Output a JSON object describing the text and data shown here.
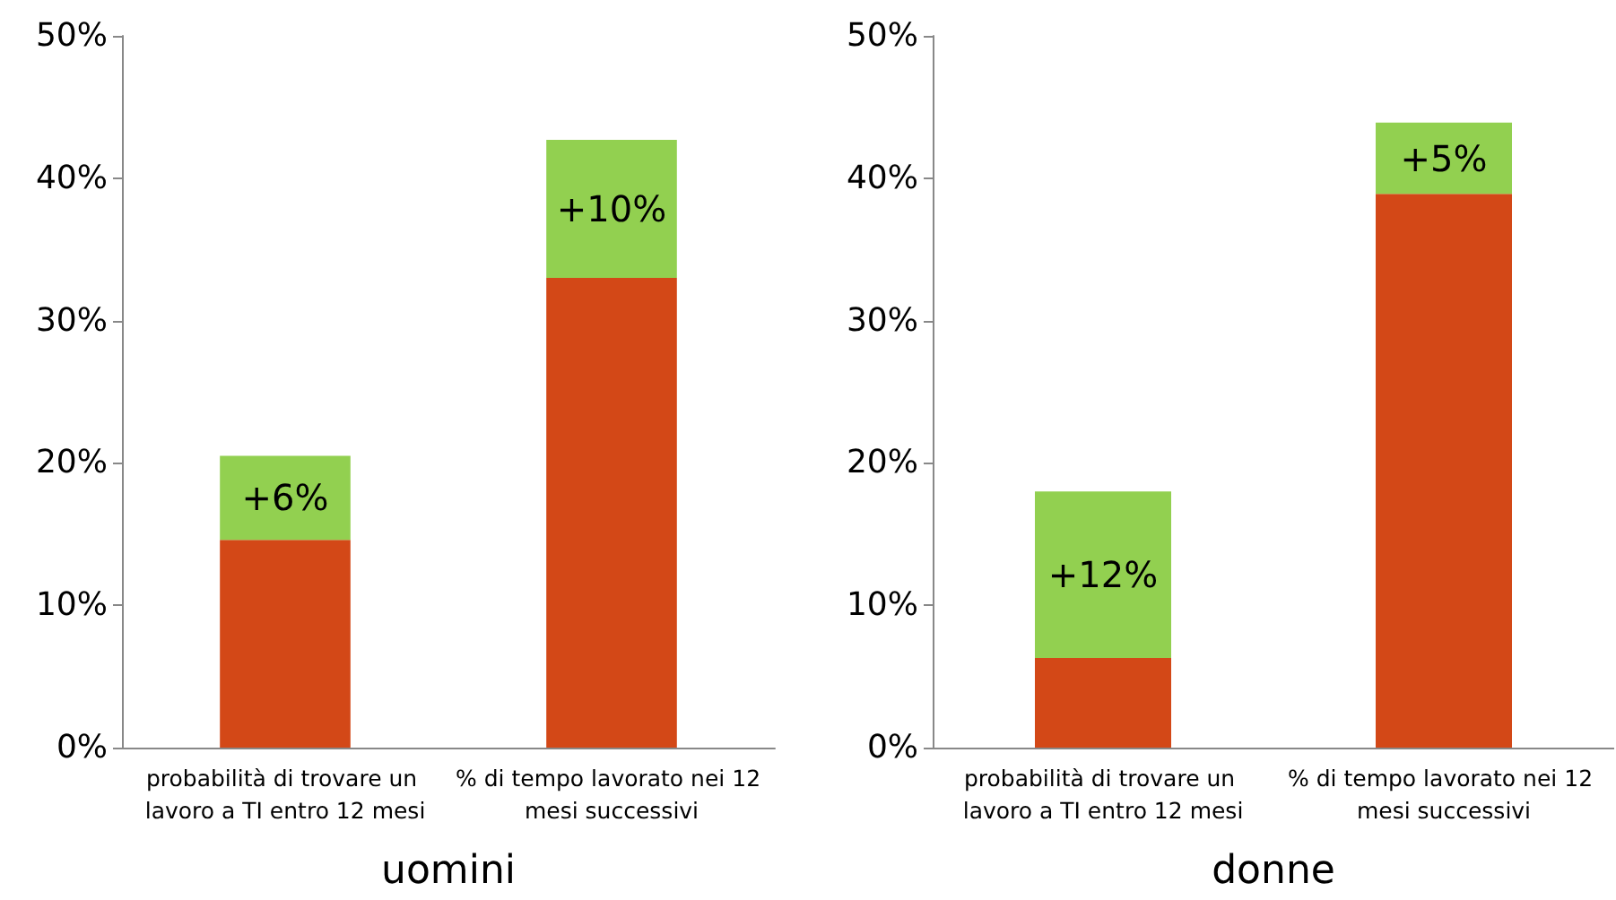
{
  "chart_data": [
    {
      "type": "bar",
      "xlabel": "uomini",
      "categories": [
        "probabilità di trovare un lavoro a TI entro 12 mesi",
        "% di tempo lavorato nei 12 mesi successivi"
      ],
      "stacked": true,
      "ylim": [
        0,
        50
      ],
      "yticks": [
        {
          "value": 0,
          "label": "0%"
        },
        {
          "value": 10,
          "label": "10%"
        },
        {
          "value": 20,
          "label": "20%"
        },
        {
          "value": 30,
          "label": "30%"
        },
        {
          "value": 40,
          "label": "40%"
        },
        {
          "value": 50,
          "label": "50%"
        }
      ],
      "grid": false,
      "series": [
        {
          "color": "#d34817",
          "values": [
            14.6,
            33.0
          ]
        },
        {
          "color": "#92d050",
          "values": [
            5.9,
            9.7
          ],
          "value_labels": [
            "+6%",
            "+10%"
          ]
        }
      ]
    },
    {
      "type": "bar",
      "xlabel": "donne",
      "categories": [
        "probabilità di trovare un lavoro a TI entro 12 mesi",
        "% di tempo lavorato nei 12 mesi successivi"
      ],
      "stacked": true,
      "ylim": [
        0,
        50
      ],
      "yticks": [
        {
          "value": 0,
          "label": "0%"
        },
        {
          "value": 10,
          "label": "10%"
        },
        {
          "value": 20,
          "label": "20%"
        },
        {
          "value": 30,
          "label": "30%"
        },
        {
          "value": 40,
          "label": "40%"
        },
        {
          "value": 50,
          "label": "50%"
        }
      ],
      "grid": false,
      "series": [
        {
          "color": "#d34817",
          "values": [
            6.3,
            38.9
          ]
        },
        {
          "color": "#92d050",
          "values": [
            11.7,
            5.0
          ],
          "value_labels": [
            "+12%",
            "+5%"
          ]
        }
      ]
    }
  ]
}
